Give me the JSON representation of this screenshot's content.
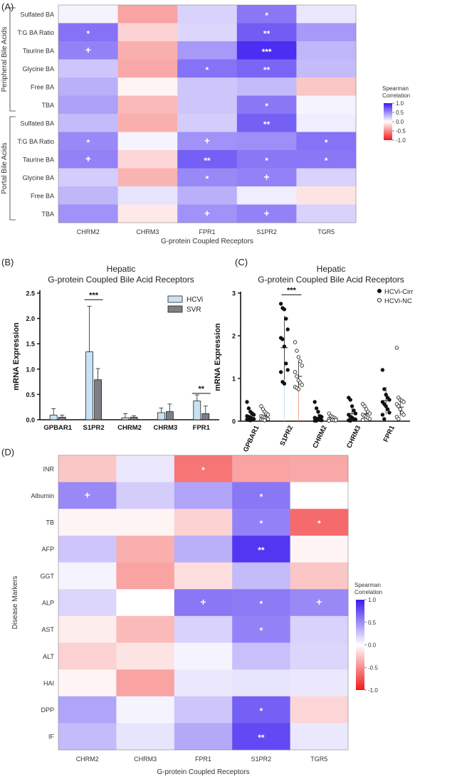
{
  "panels": {
    "A": "(A)",
    "B": "(B)",
    "C": "(C)",
    "D": "(D)"
  },
  "colorbar": {
    "title": [
      "Spearman",
      "Correlation"
    ],
    "ticks": [
      "1.0",
      "0.5",
      "0.0",
      "-0.5",
      "-1.0"
    ],
    "high_color": "#3a1cf0",
    "low_color": "#f01a1a"
  },
  "chart_data": [
    {
      "id": "A",
      "type": "heatmap",
      "xlabel": "G-protein Coupled Receptors",
      "columns": [
        "CHRM2",
        "CHRM3",
        "FPR1",
        "S1PR2",
        "TGR5"
      ],
      "groups": [
        {
          "label": "Peripheral Bile Acids",
          "rows": [
            0,
            5
          ]
        },
        {
          "label": "Portal Bile Acids",
          "rows": [
            6,
            11
          ]
        }
      ],
      "rows": [
        "Sulfated BA",
        "T:G BA Ratio",
        "Taurine BA",
        "Glycine BA",
        "Free BA",
        "TBA",
        "Sulfated BA",
        "T:G BA Ratio",
        "Taurine BA",
        "Glycine BA",
        "Free BA",
        "TBA"
      ],
      "values": [
        [
          0.05,
          -0.4,
          0.2,
          0.6,
          0.1
        ],
        [
          0.62,
          -0.2,
          0.18,
          0.72,
          0.45
        ],
        [
          0.55,
          -0.35,
          0.45,
          0.92,
          0.32
        ],
        [
          0.25,
          -0.38,
          0.62,
          0.68,
          0.3
        ],
        [
          0.35,
          -0.05,
          0.25,
          0.3,
          -0.25
        ],
        [
          0.42,
          -0.3,
          0.25,
          0.6,
          0.05
        ],
        [
          0.3,
          -0.35,
          0.22,
          0.7,
          0.08
        ],
        [
          0.52,
          0.05,
          0.48,
          0.5,
          0.62
        ],
        [
          0.55,
          -0.18,
          0.7,
          0.6,
          0.6
        ],
        [
          0.22,
          -0.33,
          0.52,
          0.55,
          0.2
        ],
        [
          0.32,
          0.12,
          0.35,
          0.08,
          -0.12
        ],
        [
          0.48,
          -0.1,
          0.48,
          0.55,
          0.2
        ]
      ],
      "annotations": [
        [
          "",
          "",
          "",
          "*",
          ""
        ],
        [
          "*",
          "",
          "",
          "**",
          ""
        ],
        [
          "+",
          "",
          "",
          "***",
          ""
        ],
        [
          "",
          "",
          "*",
          "**",
          ""
        ],
        [
          "",
          "",
          "",
          "",
          ""
        ],
        [
          "",
          "",
          "",
          "*",
          ""
        ],
        [
          "",
          "",
          "",
          "**",
          ""
        ],
        [
          "*",
          "",
          "+",
          "",
          "*"
        ],
        [
          "+",
          "",
          "**",
          "*",
          "*"
        ],
        [
          "",
          "",
          "*",
          "+",
          ""
        ],
        [
          "",
          "",
          "",
          "",
          ""
        ],
        [
          "",
          "",
          "+",
          "+",
          ""
        ]
      ],
      "range": [
        -1.0,
        1.0
      ]
    },
    {
      "id": "B",
      "type": "bar",
      "title": [
        "Hepatic",
        "G-protein Coupled Bile Acid Receptors"
      ],
      "ylabel": "mRNA Expression",
      "ylim": [
        0,
        2.5
      ],
      "yticks": [
        "0.0",
        "0.5",
        "1.0",
        "1.5",
        "2.0",
        "2.5"
      ],
      "categories": [
        "GPBAR1",
        "S1PR2",
        "CHRM2",
        "CHRM3",
        "FPR1"
      ],
      "series": [
        {
          "name": "HCVi",
          "color": "#c8e2f4",
          "values": [
            0.09,
            1.34,
            0.04,
            0.14,
            0.37
          ],
          "errors": [
            0.13,
            0.9,
            0.08,
            0.09,
            0.12
          ]
        },
        {
          "name": "SVR",
          "color": "#7d7f83",
          "values": [
            0.05,
            0.79,
            0.05,
            0.16,
            0.12
          ],
          "errors": [
            0.04,
            0.22,
            0.03,
            0.15,
            0.15
          ]
        }
      ],
      "significance": [
        {
          "category": "S1PR2",
          "label": "***",
          "y": 2.37
        },
        {
          "category": "FPR1",
          "label": "**",
          "y": 0.52
        }
      ]
    },
    {
      "id": "C",
      "type": "scatter",
      "title": [
        "Hepatic",
        "G-protein Coupled Bile Acid Receptors"
      ],
      "ylabel": "mRNA Expression",
      "ylim": [
        0,
        3
      ],
      "yticks": [
        "0",
        "1",
        "2",
        "3"
      ],
      "categories": [
        "GPBAR1",
        "S1PR2",
        "CHRM2",
        "CHRM3",
        "FPR1"
      ],
      "series": [
        {
          "name": "HCVi-Cirr",
          "filled": true,
          "means": [
            0.12,
            1.72,
            0.07,
            0.18,
            0.48
          ],
          "sds": [
            0.09,
            0.75,
            0.1,
            0.15,
            0.32
          ],
          "points": [
            [
              0.45,
              0.3,
              0.22,
              0.18,
              0.15,
              0.12,
              0.1,
              0.08,
              0.06,
              0.05,
              0.04,
              0.03,
              0.02
            ],
            [
              2.75,
              2.65,
              2.62,
              2.4,
              2.15,
              1.95,
              1.92,
              1.75,
              1.35,
              1.2,
              1.15,
              0.92,
              0.88
            ],
            [
              0.45,
              0.3,
              0.22,
              0.12,
              0.1,
              0.08,
              0.06,
              0.05,
              0.03,
              0.02,
              0.01,
              0.01
            ],
            [
              0.55,
              0.5,
              0.35,
              0.25,
              0.18,
              0.15,
              0.1,
              0.08,
              0.05,
              0.04,
              0.02,
              0.01
            ],
            [
              1.2,
              0.75,
              0.62,
              0.55,
              0.5,
              0.45,
              0.4,
              0.35,
              0.28,
              0.2,
              0.15,
              0.05
            ]
          ]
        },
        {
          "name": "HCVi-NC",
          "filled": false,
          "means": [
            0.12,
            1.05,
            0.05,
            0.17,
            0.33
          ],
          "sds": [
            0.08,
            0.35,
            0.04,
            0.12,
            0.22
          ],
          "points": [
            [
              0.35,
              0.28,
              0.22,
              0.18,
              0.15,
              0.12,
              0.1,
              0.08,
              0.06,
              0.05,
              0.04,
              0.03,
              0.02
            ],
            [
              1.85,
              1.65,
              1.5,
              1.4,
              1.3,
              1.15,
              1.05,
              0.95,
              0.9,
              0.85,
              0.8,
              0.78,
              0.75
            ],
            [
              0.18,
              0.12,
              0.1,
              0.08,
              0.06,
              0.05,
              0.04,
              0.03,
              0.02,
              0.02,
              0.01
            ],
            [
              0.4,
              0.35,
              0.28,
              0.22,
              0.18,
              0.15,
              0.12,
              0.1,
              0.08,
              0.05,
              0.03
            ],
            [
              1.72,
              0.55,
              0.5,
              0.48,
              0.45,
              0.4,
              0.35,
              0.28,
              0.2,
              0.15,
              0.1,
              0.05
            ]
          ]
        }
      ],
      "significance": [
        {
          "category": "S1PR2",
          "label": "***",
          "y": 2.96
        }
      ]
    },
    {
      "id": "D",
      "type": "heatmap",
      "xlabel": "G-protein Coupled Receptors",
      "ylabel": "Disease Markers",
      "columns": [
        "CHRM2",
        "CHRM3",
        "FPR1",
        "S1PR2",
        "TGR5"
      ],
      "rows": [
        "INR",
        "Albumin",
        "TB",
        "AFP",
        "GGT",
        "ALP",
        "AST",
        "ALT",
        "HAI",
        "DPP",
        "IF"
      ],
      "values": [
        [
          -0.25,
          0.1,
          -0.6,
          -0.4,
          -0.38
        ],
        [
          0.52,
          0.22,
          0.4,
          0.6,
          0.0
        ],
        [
          -0.05,
          -0.05,
          -0.2,
          0.55,
          -0.65
        ],
        [
          0.25,
          -0.35,
          0.35,
          0.88,
          -0.05
        ],
        [
          0.05,
          -0.4,
          -0.15,
          0.3,
          -0.25
        ],
        [
          0.18,
          0.0,
          0.6,
          0.58,
          0.52
        ],
        [
          -0.08,
          -0.3,
          0.2,
          0.55,
          0.2
        ],
        [
          -0.2,
          -0.12,
          0.05,
          0.28,
          0.18
        ],
        [
          -0.05,
          -0.4,
          0.1,
          0.12,
          0.1
        ],
        [
          0.4,
          0.05,
          0.25,
          0.7,
          -0.18
        ],
        [
          0.3,
          0.12,
          0.38,
          0.8,
          0.1
        ]
      ],
      "annotations": [
        [
          "",
          "",
          "*",
          "",
          ""
        ],
        [
          "+",
          "",
          "",
          "*",
          ""
        ],
        [
          "",
          "",
          "",
          "*",
          "*"
        ],
        [
          "",
          "",
          "",
          "**",
          ""
        ],
        [
          "",
          "",
          "",
          "",
          ""
        ],
        [
          "",
          "",
          "+",
          "*",
          "+"
        ],
        [
          "",
          "",
          "",
          "*",
          ""
        ],
        [
          "",
          "",
          "",
          "",
          ""
        ],
        [
          "",
          "",
          "",
          "",
          ""
        ],
        [
          "",
          "",
          "",
          "*",
          ""
        ],
        [
          "",
          "",
          "",
          "**",
          ""
        ]
      ],
      "range": [
        -1.0,
        1.0
      ]
    }
  ]
}
